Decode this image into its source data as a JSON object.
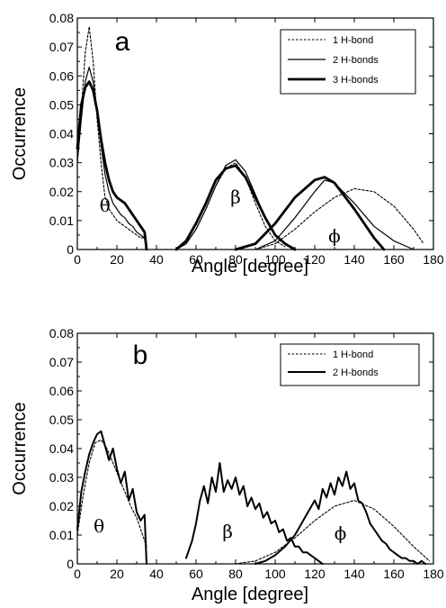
{
  "chart_data": [
    {
      "type": "line",
      "panel_label": "a",
      "xlabel": "Angle [degree]",
      "ylabel": "Occurrence",
      "xlim": [
        0,
        180
      ],
      "ylim": [
        0,
        0.08
      ],
      "x_ticks": [
        "0",
        "20",
        "40",
        "60",
        "80",
        "100",
        "120",
        "140",
        "160",
        "180"
      ],
      "y_ticks": [
        "0",
        "0.01",
        "0.02",
        "0.03",
        "0.04",
        "0.05",
        "0.06",
        "0.07",
        "0.08"
      ],
      "legend_position": "top-right",
      "annotations": [
        {
          "text": "θ",
          "x": 14,
          "y": 0.013
        },
        {
          "text": "β",
          "x": 80,
          "y": 0.016
        },
        {
          "text": "ϕ",
          "x": 130,
          "y": 0.0025
        }
      ],
      "series": [
        {
          "name": "1 H-bond",
          "style": "dotted",
          "segments": [
            {
              "x": [
                0,
                2,
                4,
                6,
                8,
                10,
                12,
                14,
                16,
                18,
                20,
                22,
                24,
                26,
                28,
                30,
                32,
                34,
                35
              ],
              "y": [
                0.03,
                0.048,
                0.068,
                0.077,
                0.065,
                0.045,
                0.03,
                0.018,
                0.014,
                0.012,
                0.01,
                0.009,
                0.008,
                0.007,
                0.006,
                0.005,
                0.004,
                0.004,
                0
              ]
            },
            {
              "x": [
                50,
                55,
                60,
                65,
                70,
                75,
                80,
                85,
                90,
                95,
                100,
                105
              ],
              "y": [
                0,
                0.002,
                0.007,
                0.014,
                0.022,
                0.028,
                0.03,
                0.025,
                0.016,
                0.008,
                0.003,
                0.001
              ]
            },
            {
              "x": [
                90,
                100,
                110,
                120,
                130,
                140,
                150,
                160,
                170,
                175
              ],
              "y": [
                0,
                0.002,
                0.007,
                0.013,
                0.018,
                0.021,
                0.02,
                0.015,
                0.007,
                0.002
              ]
            }
          ]
        },
        {
          "name": "2 H-bonds",
          "style": "thin",
          "segments": [
            {
              "x": [
                0,
                2,
                4,
                6,
                8,
                10,
                12,
                14,
                16,
                18,
                20,
                22,
                24,
                26,
                28,
                30,
                32,
                34,
                35
              ],
              "y": [
                0.03,
                0.045,
                0.058,
                0.063,
                0.058,
                0.048,
                0.036,
                0.026,
                0.02,
                0.016,
                0.014,
                0.012,
                0.011,
                0.009,
                0.008,
                0.006,
                0.005,
                0.004,
                0
              ]
            },
            {
              "x": [
                50,
                55,
                60,
                65,
                70,
                75,
                80,
                85,
                90,
                95,
                100,
                105,
                110
              ],
              "y": [
                0,
                0.002,
                0.007,
                0.014,
                0.022,
                0.029,
                0.031,
                0.027,
                0.019,
                0.011,
                0.005,
                0.002,
                0
              ]
            },
            {
              "x": [
                90,
                100,
                110,
                120,
                125,
                130,
                140,
                150,
                160,
                170
              ],
              "y": [
                0,
                0.003,
                0.011,
                0.02,
                0.024,
                0.023,
                0.016,
                0.008,
                0.003,
                0
              ]
            }
          ]
        },
        {
          "name": "3 H-bonds",
          "style": "thick",
          "segments": [
            {
              "x": [
                0,
                2,
                4,
                6,
                8,
                10,
                12,
                14,
                16,
                18,
                20,
                22,
                24,
                26,
                28,
                30,
                32,
                34,
                35
              ],
              "y": [
                0.035,
                0.05,
                0.056,
                0.058,
                0.055,
                0.048,
                0.038,
                0.03,
                0.024,
                0.02,
                0.018,
                0.017,
                0.016,
                0.014,
                0.012,
                0.01,
                0.008,
                0.006,
                0
              ]
            },
            {
              "x": [
                50,
                55,
                60,
                65,
                70,
                75,
                80,
                85,
                90,
                95,
                100,
                105,
                110
              ],
              "y": [
                0,
                0.003,
                0.009,
                0.016,
                0.024,
                0.028,
                0.029,
                0.025,
                0.018,
                0.011,
                0.005,
                0.002,
                0
              ]
            },
            {
              "x": [
                80,
                90,
                100,
                110,
                120,
                125,
                130,
                140,
                150,
                155
              ],
              "y": [
                0,
                0.002,
                0.009,
                0.018,
                0.024,
                0.025,
                0.023,
                0.014,
                0.004,
                0
              ]
            }
          ]
        }
      ]
    },
    {
      "type": "line",
      "panel_label": "b",
      "xlabel": "Angle [degree]",
      "ylabel": "Occurrence",
      "xlim": [
        0,
        180
      ],
      "ylim": [
        0,
        0.08
      ],
      "x_ticks": [
        "0",
        "20",
        "40",
        "60",
        "80",
        "100",
        "120",
        "140",
        "160",
        "180"
      ],
      "y_ticks": [
        "0",
        "0.01",
        "0.02",
        "0.03",
        "0.04",
        "0.05",
        "0.06",
        "0.07",
        "0.08"
      ],
      "legend_position": "top-right",
      "annotations": [
        {
          "text": "θ",
          "x": 11,
          "y": 0.011
        },
        {
          "text": "β",
          "x": 76,
          "y": 0.009
        },
        {
          "text": "ϕ",
          "x": 133,
          "y": 0.0085
        }
      ],
      "series": [
        {
          "name": "1 H-bond",
          "style": "dotted",
          "segments": [
            {
              "x": [
                0,
                3,
                6,
                9,
                12,
                15,
                18,
                21,
                24,
                27,
                30,
                33,
                35
              ],
              "y": [
                0.01,
                0.024,
                0.035,
                0.042,
                0.043,
                0.04,
                0.035,
                0.03,
                0.025,
                0.02,
                0.016,
                0.01,
                0.006
              ]
            },
            {
              "x": [
                80,
                90,
                100,
                110,
                120,
                130,
                140,
                150,
                160,
                170,
                178
              ],
              "y": [
                0,
                0.001,
                0.004,
                0.009,
                0.015,
                0.02,
                0.022,
                0.019,
                0.013,
                0.006,
                0.001
              ]
            }
          ]
        },
        {
          "name": "2 H-bonds",
          "style": "solid",
          "segments": [
            {
              "x": [
                0,
                2,
                4,
                6,
                8,
                10,
                12,
                14,
                16,
                18,
                20,
                22,
                24,
                26,
                28,
                30,
                32,
                34,
                35
              ],
              "y": [
                0.012,
                0.025,
                0.032,
                0.038,
                0.042,
                0.045,
                0.046,
                0.041,
                0.036,
                0.04,
                0.033,
                0.028,
                0.032,
                0.022,
                0.026,
                0.018,
                0.015,
                0.017,
                0
              ]
            },
            {
              "x": [
                55,
                58,
                60,
                62,
                64,
                66,
                68,
                70,
                72,
                74,
                76,
                78,
                80,
                82,
                84,
                86,
                88,
                90,
                92,
                94,
                96,
                98,
                100,
                102,
                104,
                106,
                108,
                110,
                112,
                114,
                116,
                118,
                120,
                122,
                124
              ],
              "y": [
                0.002,
                0.008,
                0.014,
                0.022,
                0.027,
                0.021,
                0.03,
                0.025,
                0.035,
                0.025,
                0.029,
                0.026,
                0.03,
                0.024,
                0.027,
                0.02,
                0.023,
                0.019,
                0.021,
                0.016,
                0.018,
                0.014,
                0.015,
                0.011,
                0.012,
                0.008,
                0.009,
                0.006,
                0.006,
                0.004,
                0.004,
                0.003,
                0.002,
                0.001,
                0
              ]
            },
            {
              "x": [
                90,
                95,
                100,
                105,
                110,
                115,
                120,
                122,
                124,
                126,
                128,
                130,
                132,
                134,
                136,
                138,
                140,
                142,
                144,
                146,
                148,
                150,
                152,
                154,
                156,
                158,
                160,
                162,
                164,
                166,
                168,
                170,
                172,
                174,
                176
              ],
              "y": [
                0,
                0.001,
                0.003,
                0.006,
                0.01,
                0.016,
                0.022,
                0.019,
                0.026,
                0.023,
                0.028,
                0.024,
                0.03,
                0.027,
                0.032,
                0.026,
                0.028,
                0.022,
                0.021,
                0.018,
                0.014,
                0.012,
                0.01,
                0.008,
                0.007,
                0.005,
                0.004,
                0.003,
                0.002,
                0.002,
                0.001,
                0.001,
                0,
                0.001,
                0
              ]
            }
          ]
        }
      ]
    }
  ]
}
